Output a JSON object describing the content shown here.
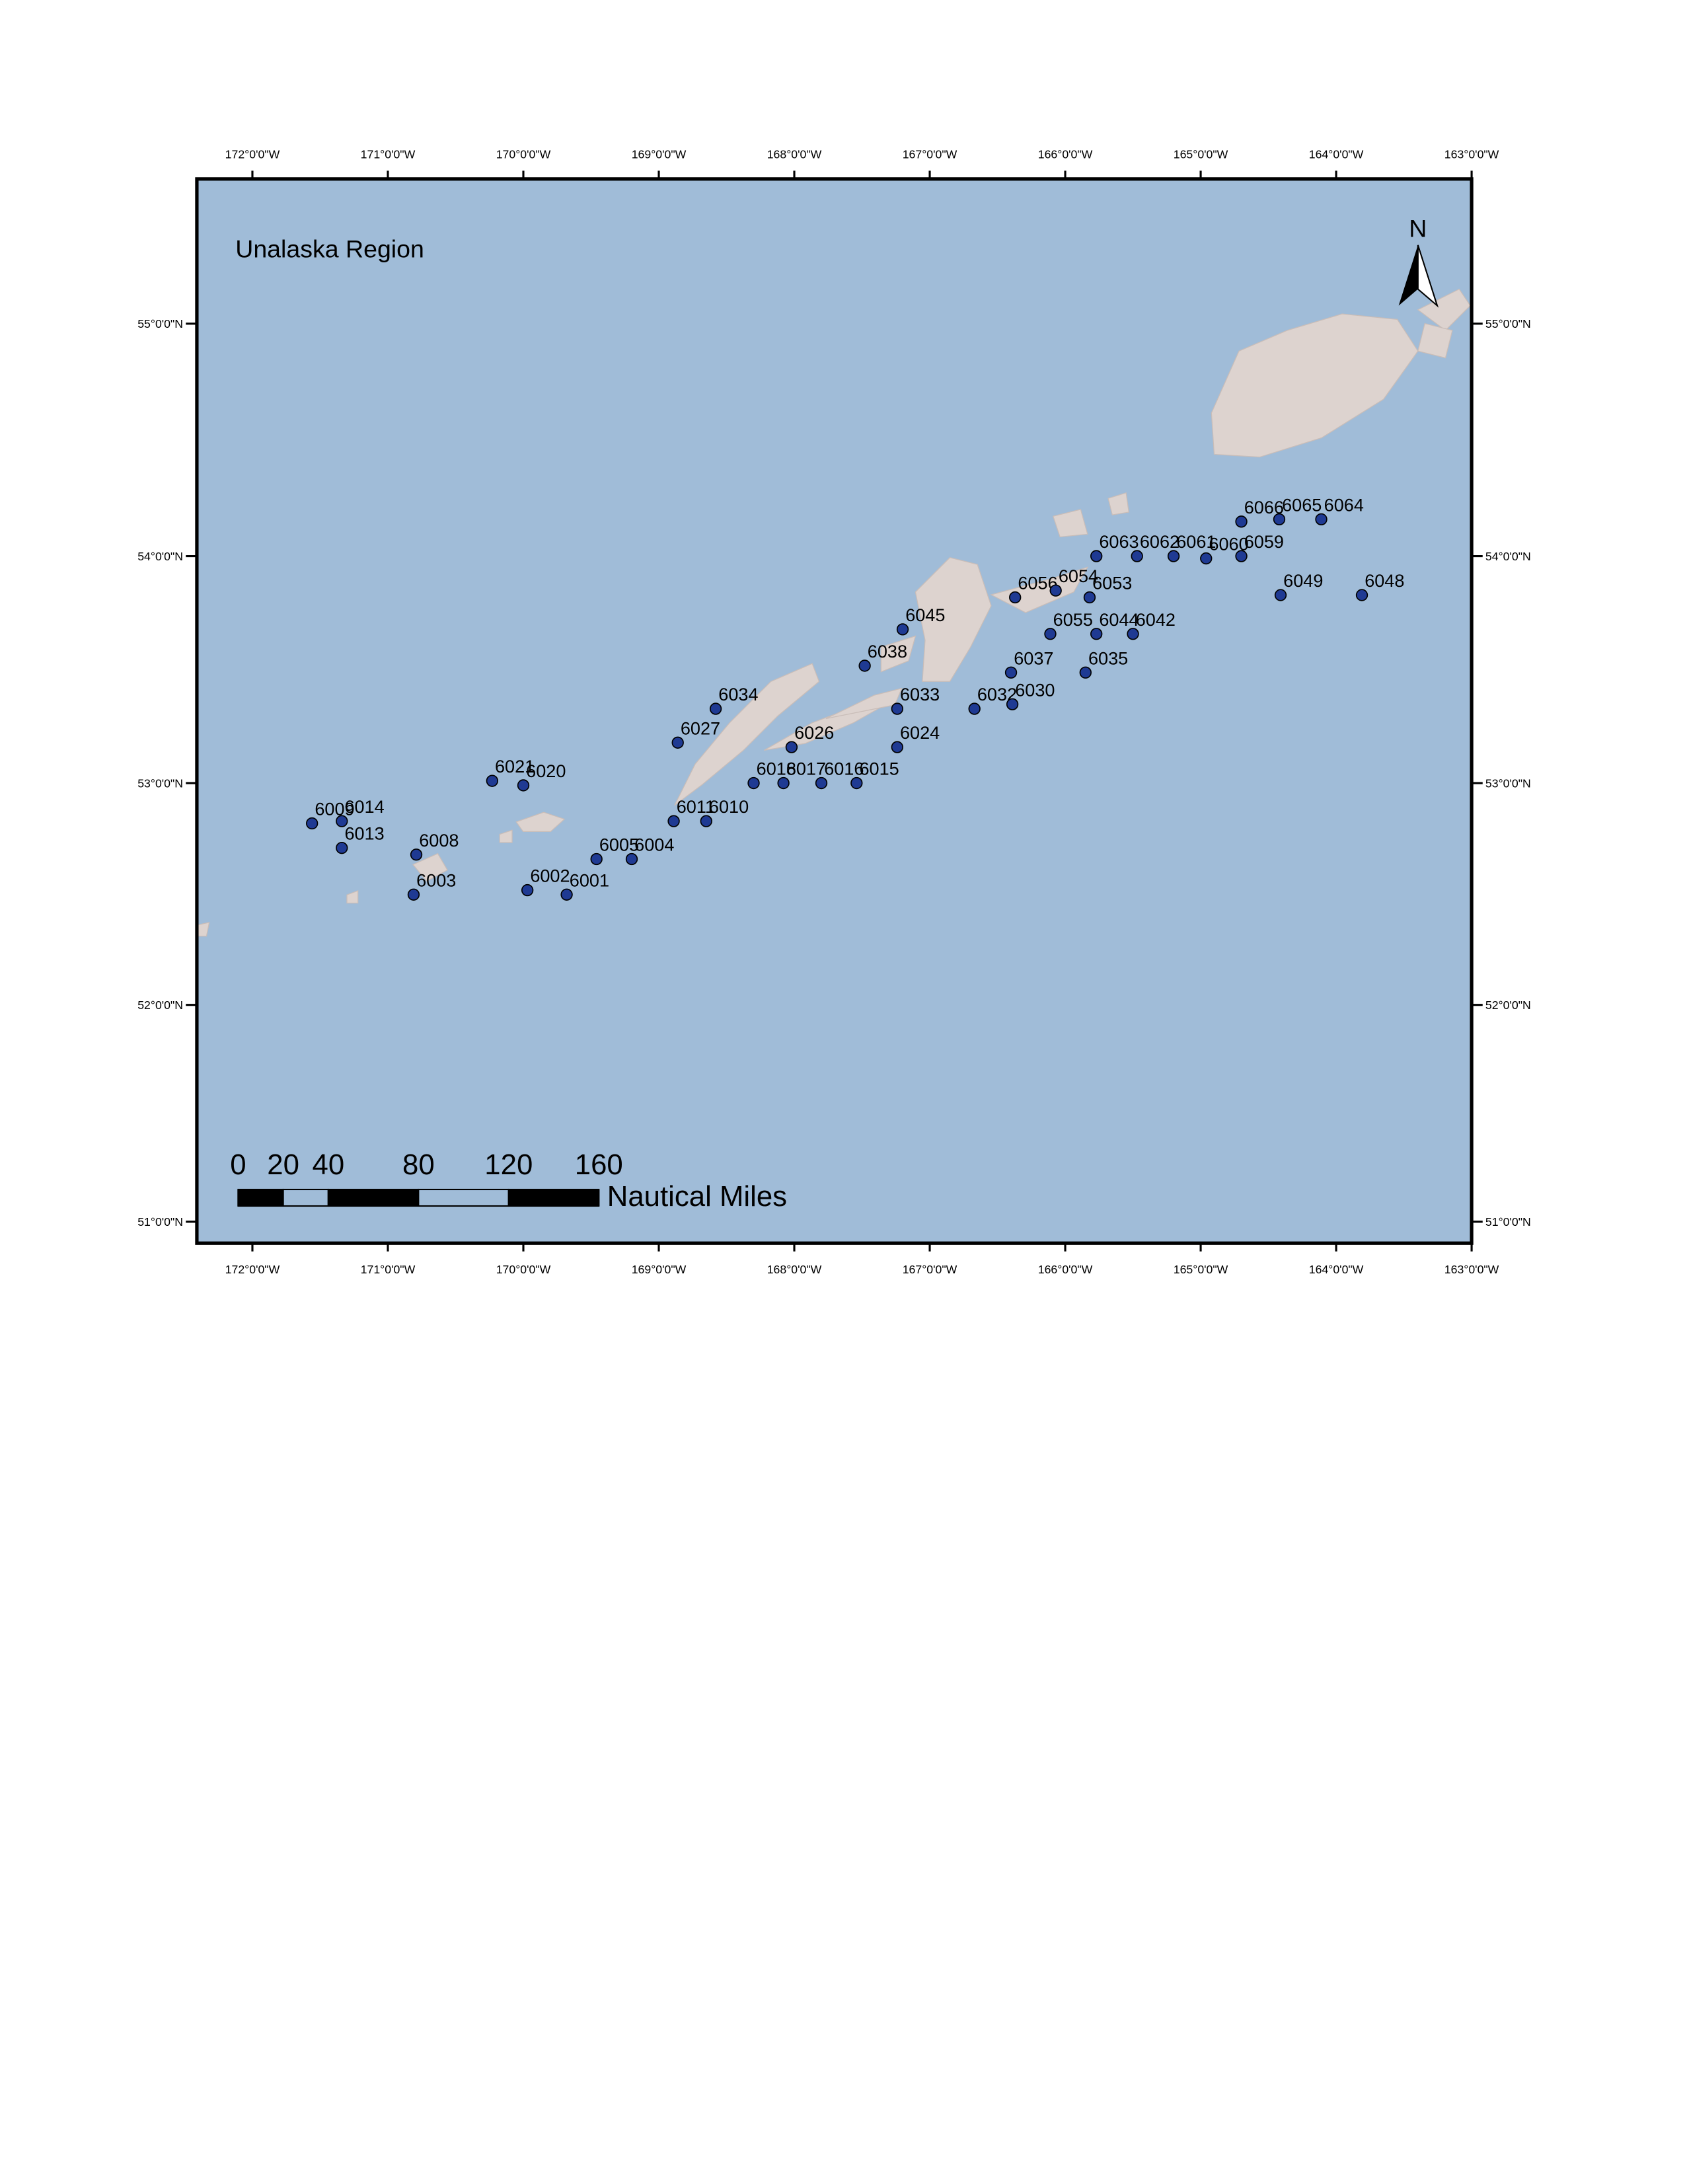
{
  "chart_data": {
    "type": "map",
    "title": "Unalaska Region",
    "north_label": "N",
    "color": "#1f3a93",
    "xlim": [
      -172.41,
      -163.0
    ],
    "ylim": [
      50.9,
      55.61
    ],
    "xticks": [
      {
        "value": -172,
        "label": "172°0'0\"W"
      },
      {
        "value": -171,
        "label": "171°0'0\"W"
      },
      {
        "value": -170,
        "label": "170°0'0\"W"
      },
      {
        "value": -169,
        "label": "169°0'0\"W"
      },
      {
        "value": -168,
        "label": "168°0'0\"W"
      },
      {
        "value": -167,
        "label": "167°0'0\"W"
      },
      {
        "value": -166,
        "label": "166°0'0\"W"
      },
      {
        "value": -165,
        "label": "165°0'0\"W"
      },
      {
        "value": -164,
        "label": "164°0'0\"W"
      },
      {
        "value": -163,
        "label": "163°0'0\"W"
      }
    ],
    "yticks": [
      {
        "value": 55,
        "label": "55°0'0\"N"
      },
      {
        "value": 54,
        "label": "54°0'0\"N"
      },
      {
        "value": 53,
        "label": "53°0'0\"N"
      },
      {
        "value": 52,
        "label": "52°0'0\"N"
      },
      {
        "value": 51,
        "label": "51°0'0\"N"
      }
    ],
    "stations": {
      "labels": [
        "6014",
        "6009",
        "6013",
        "6008",
        "6003",
        "6021",
        "6020",
        "6002",
        "6001",
        "6005",
        "6004",
        "6027",
        "6034",
        "6011",
        "6010",
        "6018",
        "6017",
        "6016",
        "6015",
        "6026",
        "6024",
        "6033",
        "6038",
        "6045",
        "6032",
        "6030",
        "6037",
        "6035",
        "6055",
        "6044",
        "6042",
        "6056",
        "6054",
        "6053",
        "6063",
        "6062",
        "6061",
        "6060",
        "6059",
        "6066",
        "6065",
        "6064",
        "6049",
        "6048"
      ],
      "lon": [
        -171.34,
        -171.56,
        -171.34,
        -170.79,
        -170.81,
        -170.23,
        -170.0,
        -169.97,
        -169.68,
        -169.46,
        -169.2,
        -168.86,
        -168.58,
        -168.89,
        -168.65,
        -168.3,
        -168.08,
        -167.8,
        -167.54,
        -168.02,
        -167.24,
        -167.24,
        -167.48,
        -167.2,
        -166.67,
        -166.39,
        -166.4,
        -165.85,
        -166.11,
        -165.77,
        -165.5,
        -166.37,
        -166.07,
        -165.82,
        -165.77,
        -165.47,
        -165.2,
        -164.96,
        -164.7,
        -164.7,
        -164.42,
        -164.11,
        -164.41,
        -163.81
      ],
      "lat": [
        52.83,
        52.82,
        52.71,
        52.68,
        52.5,
        53.01,
        52.99,
        52.52,
        52.5,
        52.66,
        52.66,
        53.18,
        53.33,
        52.83,
        52.83,
        53.0,
        53.0,
        53.0,
        53.0,
        53.16,
        53.16,
        53.33,
        53.52,
        53.68,
        53.33,
        53.35,
        53.49,
        53.49,
        53.66,
        53.66,
        53.66,
        53.82,
        53.85,
        53.82,
        54.0,
        54.0,
        54.0,
        53.99,
        54.0,
        54.15,
        54.16,
        54.16,
        53.83,
        53.83
      ]
    },
    "scale_bar": {
      "ticks": [
        0,
        20,
        40,
        80,
        120,
        160
      ],
      "unit": "Nautical Miles"
    }
  }
}
